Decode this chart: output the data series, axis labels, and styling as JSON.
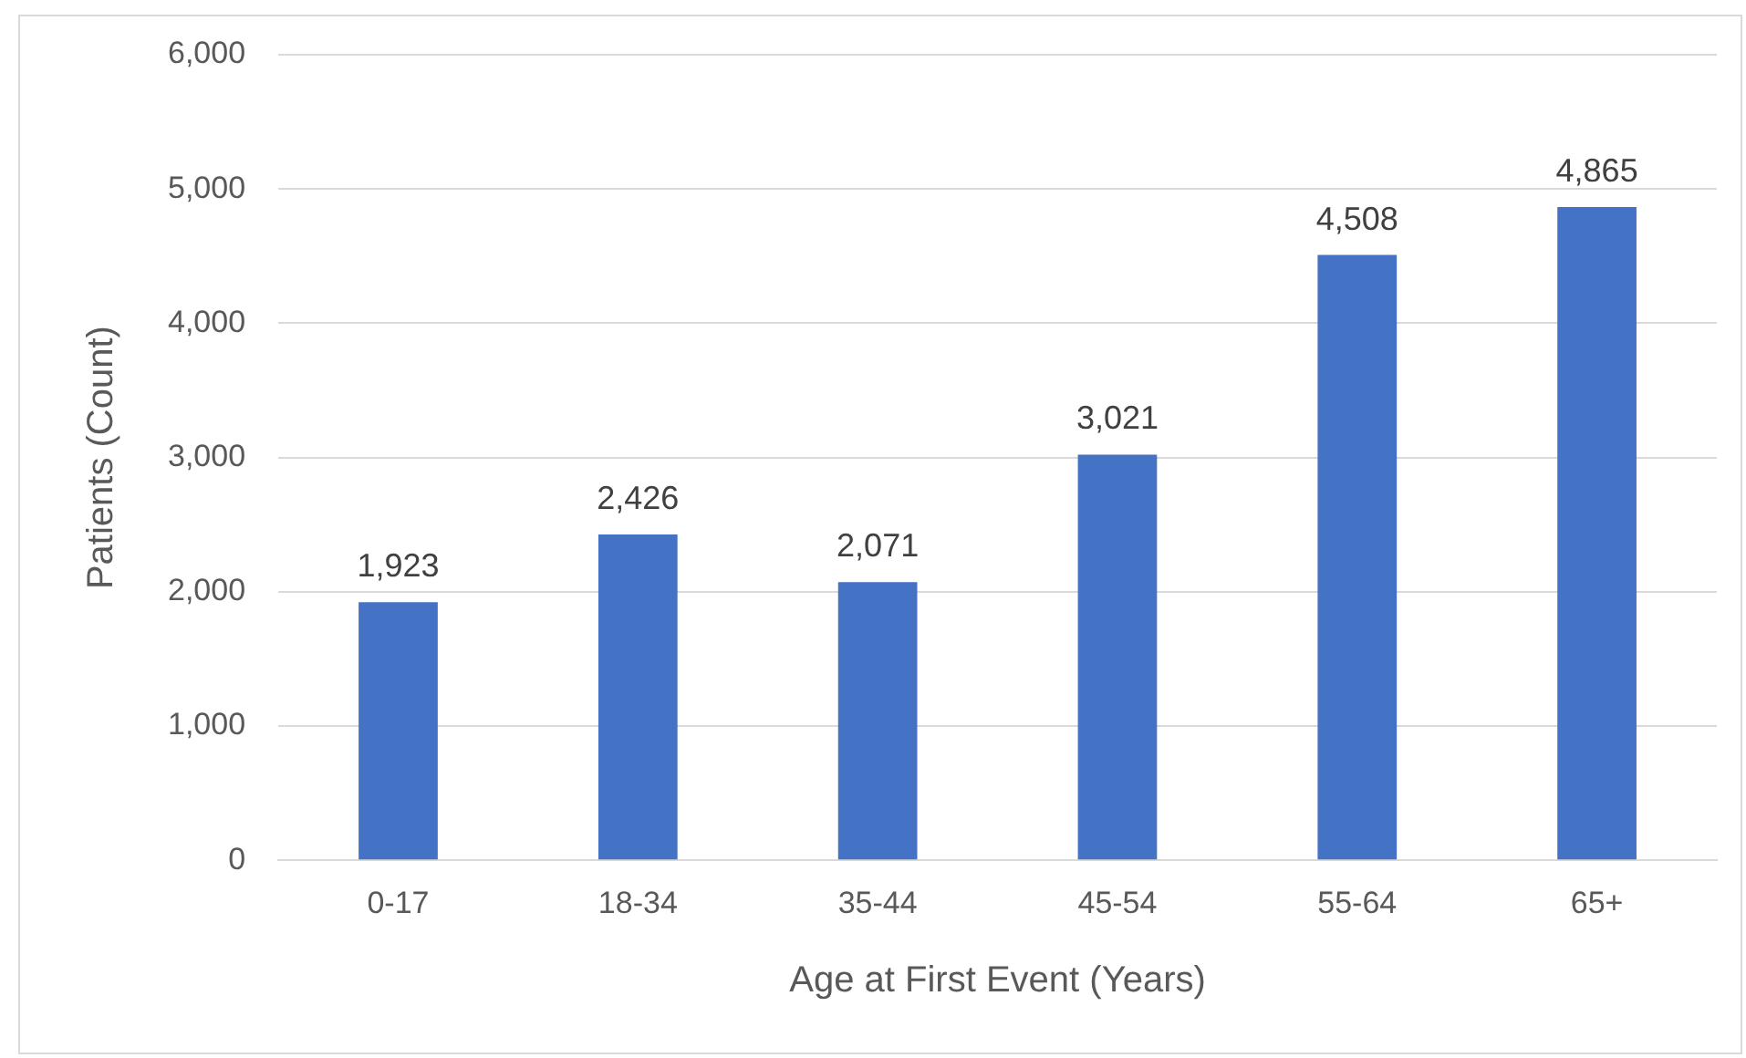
{
  "chart_data": {
    "type": "bar",
    "xlabel": "Age at First Event (Years)",
    "ylabel": "Patients (Count)",
    "categories": [
      "0-17",
      "18-34",
      "35-44",
      "45-54",
      "55-64",
      "65+"
    ],
    "values": [
      1923,
      2426,
      2071,
      3021,
      4508,
      4865
    ],
    "color": "#4472c4",
    "ylim": [
      0,
      6000
    ],
    "yticks": [
      {
        "value": 0,
        "label": "0"
      },
      {
        "value": 1000,
        "label": "1,000"
      },
      {
        "value": 2000,
        "label": "2,000"
      },
      {
        "value": 3000,
        "label": "3,000"
      },
      {
        "value": 4000,
        "label": "4,000"
      },
      {
        "value": 5000,
        "label": "5,000"
      },
      {
        "value": 6000,
        "label": "6,000"
      }
    ],
    "value_labels": [
      "1,923",
      "2,426",
      "2,071",
      "3,021",
      "4,508",
      "4,865"
    ],
    "grid": "y",
    "legend": false
  }
}
